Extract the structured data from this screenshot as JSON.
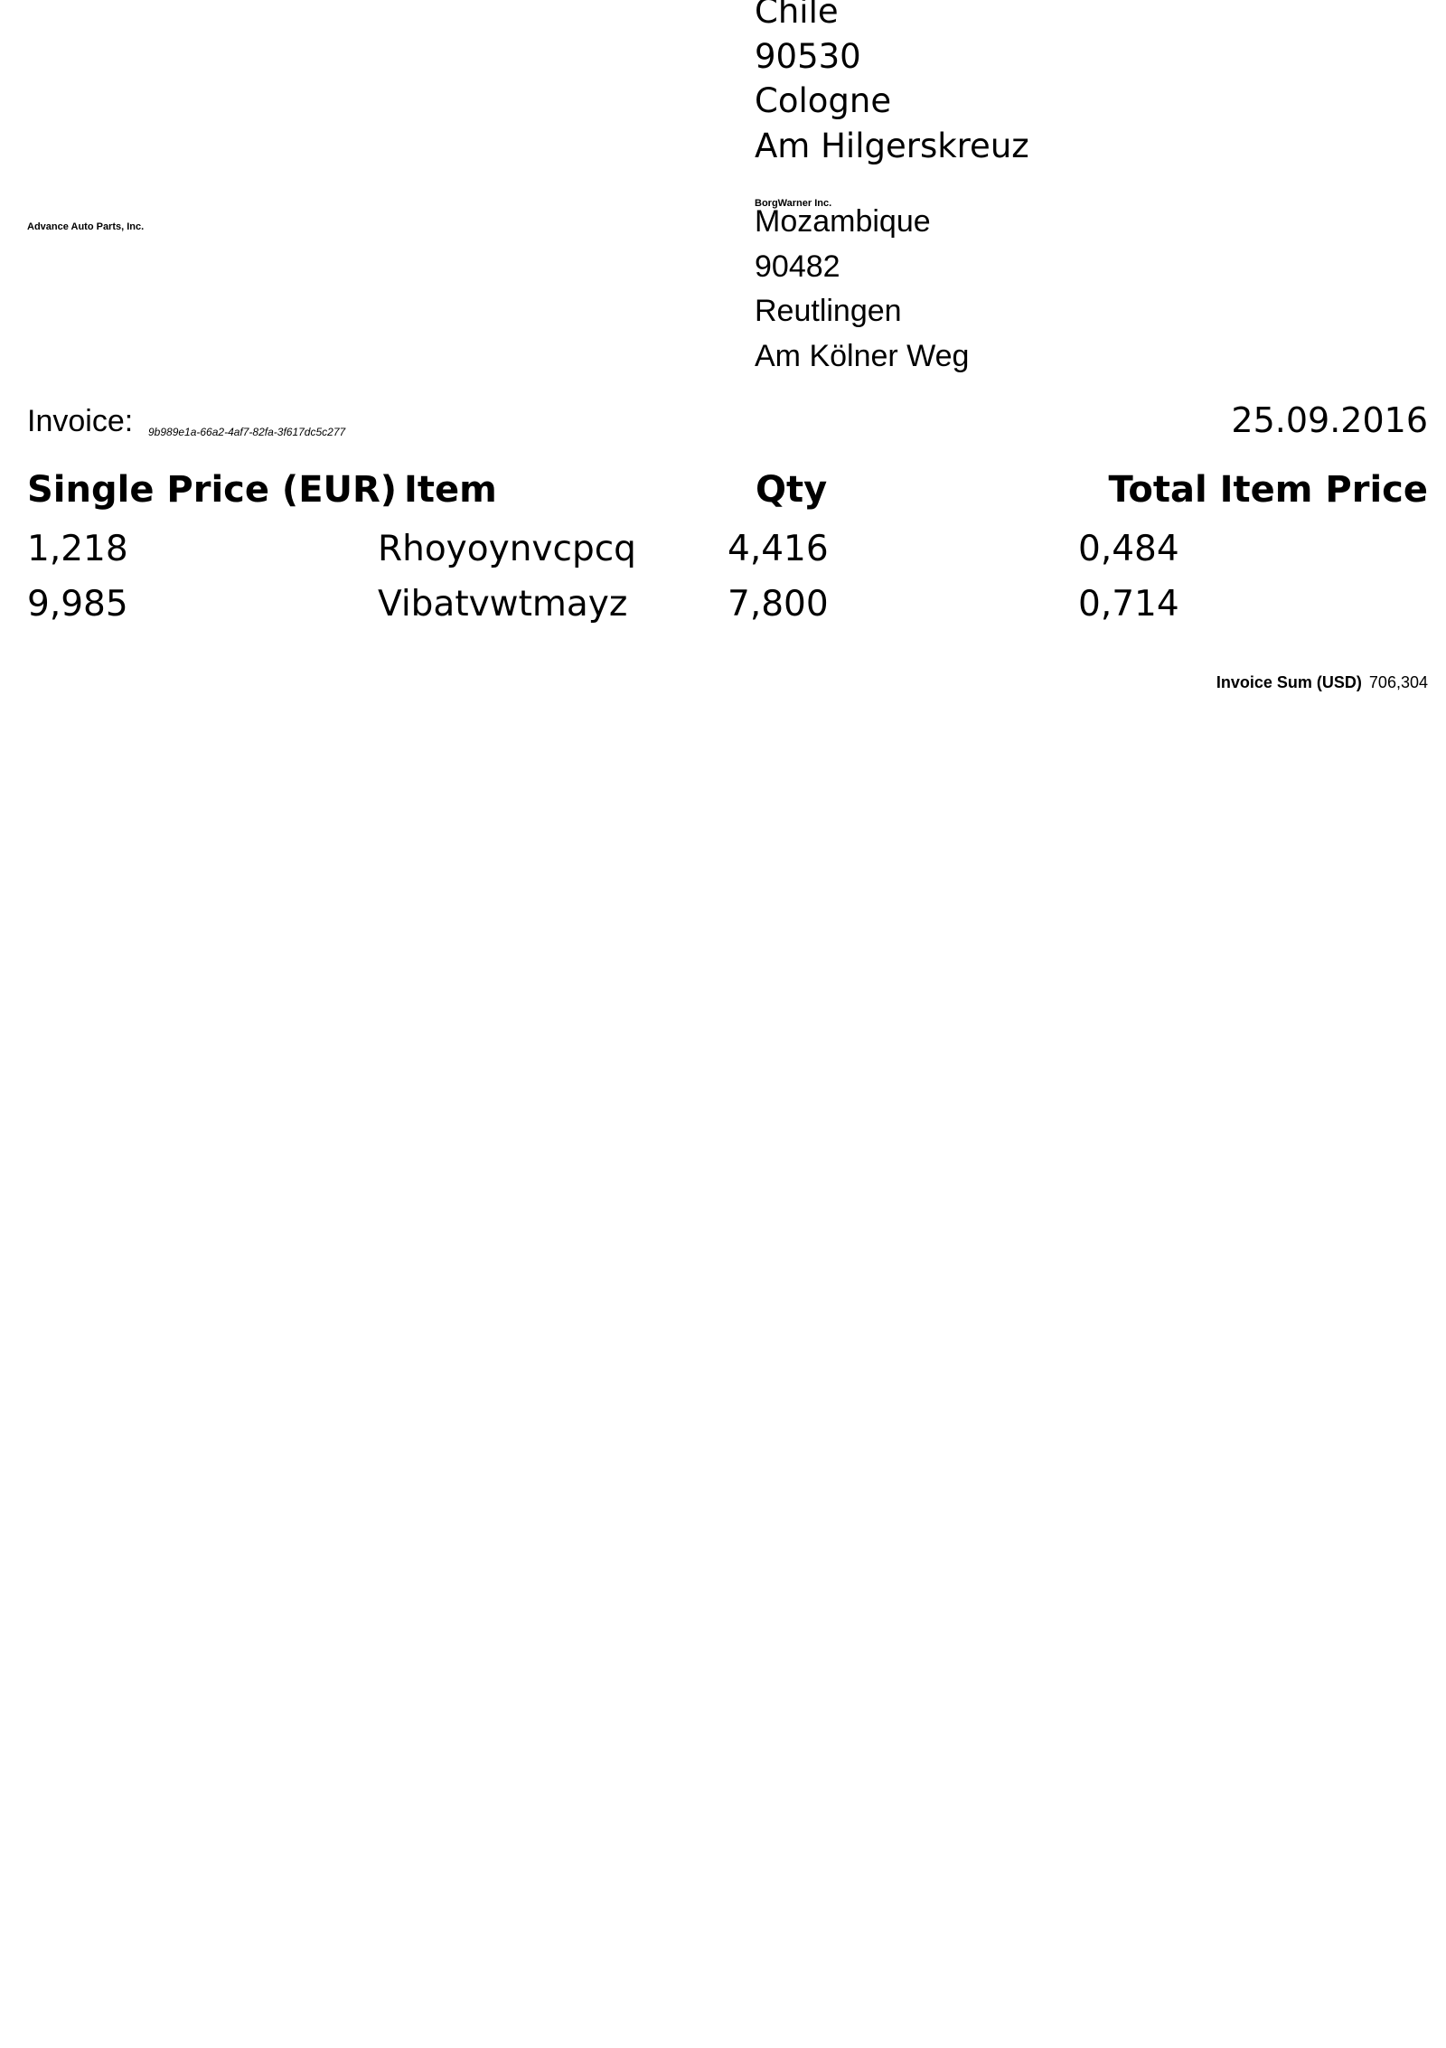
{
  "sender": {
    "country": "Chile",
    "zip": "90530",
    "city": "Cologne",
    "street": "Am Hilgerskreuz"
  },
  "seller_company": "Advance Auto Parts, Inc.",
  "buyer_company": "BorgWarner Inc.",
  "recipient": {
    "country": "Mozambique",
    "zip": "90482",
    "city": "Reutlingen",
    "street": "Am Kölner Weg"
  },
  "invoice": {
    "label": "Invoice:",
    "id": "9b989e1a-66a2-4af7-82fa-3f617dc5c277",
    "date": "25.09.2016"
  },
  "table": {
    "headers": [
      "Single Price (EUR)",
      "Item",
      "Qty",
      "Total Item Price"
    ],
    "rows": [
      [
        "1,218",
        "Rhoyoynvcpcq",
        "4,416",
        "0,484"
      ],
      [
        "9,985",
        "Vibatvwtmayz",
        "7,800",
        "0,714"
      ]
    ]
  },
  "sum": {
    "label": "Invoice Sum (USD)",
    "value": "706,304"
  }
}
